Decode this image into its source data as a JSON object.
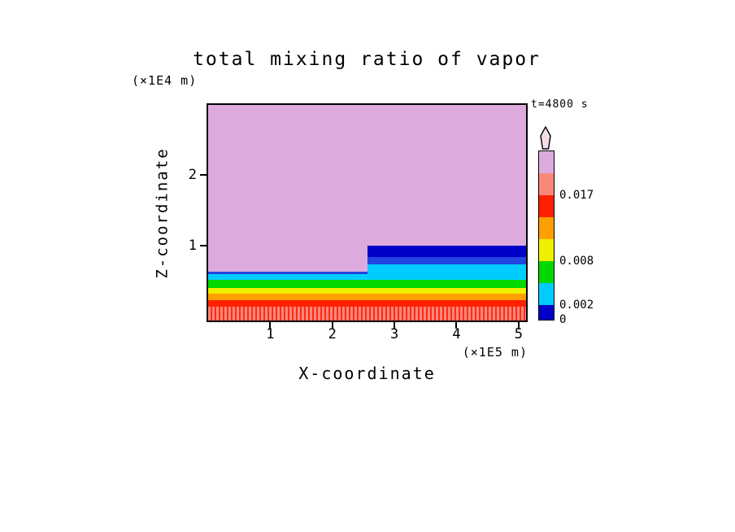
{
  "chart_data": {
    "type": "heatmap",
    "title": "total mixing ratio of vapor",
    "time_label": "t=4800 s",
    "xlabel": "X-coordinate",
    "x_unit": "(×1E5 m)",
    "ylabel": "Z-coordinate",
    "y_unit": "(×1E4 m)",
    "xlim": [
      0,
      5.12
    ],
    "zlim": [
      -0.05,
      2.99
    ],
    "x_ticks": [
      {
        "value": 1,
        "label": "1"
      },
      {
        "value": 2,
        "label": "2"
      },
      {
        "value": 3,
        "label": "3"
      },
      {
        "value": 4,
        "label": "4"
      },
      {
        "value": 5,
        "label": "5"
      }
    ],
    "z_ticks": [
      {
        "value": 1,
        "label": "1"
      },
      {
        "value": 2,
        "label": "2"
      }
    ],
    "regions": [
      {
        "name": "plum-upper",
        "x": [
          0,
          5.12
        ],
        "z": [
          -0.05,
          2.99
        ],
        "color": "#DCAADD"
      },
      {
        "name": "salmon-surface-striped",
        "x": [
          0,
          5.12
        ],
        "z": [
          -0.05,
          0.15
        ],
        "color": "#FA8878",
        "stripe_color": "#FF2A1A"
      },
      {
        "name": "red-band",
        "x": [
          0,
          5.12
        ],
        "z": [
          0.15,
          0.24
        ],
        "color": "#FF2000"
      },
      {
        "name": "orange-band",
        "x": [
          0,
          5.12
        ],
        "z": [
          0.24,
          0.33
        ],
        "color": "#FF9F00"
      },
      {
        "name": "yellow-band",
        "x": [
          0,
          5.12
        ],
        "z": [
          0.33,
          0.41
        ],
        "color": "#EFEF00"
      },
      {
        "name": "green-band",
        "x": [
          0,
          5.12
        ],
        "z": [
          0.41,
          0.52
        ],
        "color": "#00D800"
      },
      {
        "name": "cyan-band",
        "x": [
          0,
          5.12
        ],
        "z": [
          0.52,
          0.6
        ],
        "color": "#00CCFF"
      },
      {
        "name": "blue-contour-left",
        "x": [
          0,
          2.57
        ],
        "z": [
          0.6,
          0.64
        ],
        "color": "#2244E0"
      },
      {
        "name": "cyan-upper-right",
        "x": [
          2.57,
          5.12
        ],
        "z": [
          0.6,
          0.745
        ],
        "color": "#00CCFF"
      },
      {
        "name": "blue-band-right",
        "x": [
          2.57,
          5.12
        ],
        "z": [
          0.745,
          0.84
        ],
        "color": "#2244E0"
      },
      {
        "name": "navy-band-right",
        "x": [
          2.57,
          5.12
        ],
        "z": [
          0.84,
          1.01
        ],
        "color": "#0000C8"
      }
    ],
    "colorbar": {
      "segments": [
        {
          "from": 0,
          "to": 0.002,
          "color": "#0000C8"
        },
        {
          "from": 0.002,
          "to": 0.005,
          "color": "#00CCFF"
        },
        {
          "from": 0.005,
          "to": 0.008,
          "color": "#00D800"
        },
        {
          "from": 0.008,
          "to": 0.011,
          "color": "#EFEF00"
        },
        {
          "from": 0.011,
          "to": 0.014,
          "color": "#FF9F00"
        },
        {
          "from": 0.014,
          "to": 0.017,
          "color": "#FF2000"
        },
        {
          "from": 0.017,
          "to": 0.02,
          "color": "#FA8878"
        },
        {
          "from": 0.02,
          "to": 0.023,
          "color": "#DCAADD"
        }
      ],
      "arrow_color": "#F4DBE9",
      "labels": [
        {
          "text": "0.017",
          "value": 0.017
        },
        {
          "text": "0.008",
          "value": 0.008
        },
        {
          "text": "0.002",
          "value": 0.002
        },
        {
          "text": "0",
          "value": 0
        }
      ]
    }
  }
}
